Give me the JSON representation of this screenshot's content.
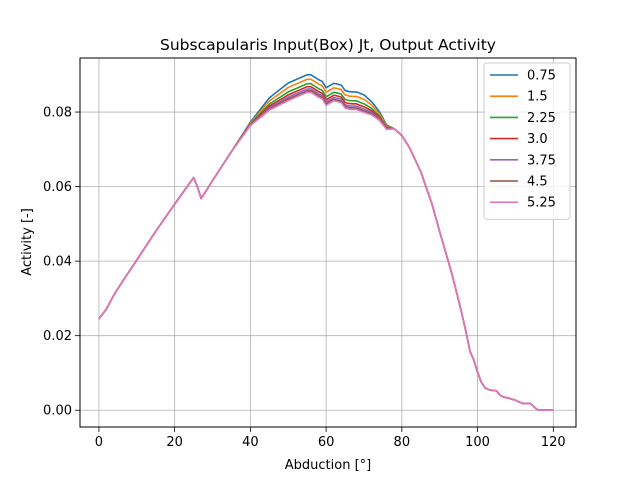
{
  "chart_data": {
    "type": "line",
    "title": "Subscapularis Input(Box) Jt, Output Activity",
    "xlabel": "Abduction [°]",
    "ylabel": "Activity [-]",
    "xlim": [
      -5,
      126
    ],
    "ylim": [
      -0.0045,
      0.0945
    ],
    "xticks": [
      0,
      20,
      40,
      60,
      80,
      100,
      120
    ],
    "xtick_labels": [
      "0",
      "20",
      "40",
      "60",
      "80",
      "100",
      "120"
    ],
    "yticks": [
      0.0,
      0.02,
      0.04,
      0.06,
      0.08
    ],
    "ytick_labels": [
      "0.00",
      "0.02",
      "0.04",
      "0.06",
      "0.08"
    ],
    "grid": true,
    "legend_position": "top-right",
    "base_curve": {
      "x": [
        0,
        2,
        4,
        6,
        10,
        15,
        20,
        25,
        26,
        27,
        30,
        35,
        40,
        45,
        50,
        55,
        56,
        58,
        59,
        60,
        62,
        63,
        64,
        65,
        66,
        67,
        68,
        70,
        72,
        74,
        76,
        78,
        80,
        82,
        85,
        88,
        90,
        93,
        95,
        96,
        97,
        98,
        99,
        100,
        101,
        102,
        103,
        104,
        105,
        106,
        107,
        108,
        109,
        110,
        111,
        112,
        113,
        114,
        115,
        116,
        117,
        118,
        119,
        120
      ],
      "y": [
        0.0245,
        0.0272,
        0.031,
        0.0342,
        0.0403,
        0.048,
        0.0553,
        0.0624,
        0.06,
        0.0568,
        0.0616,
        0.0694,
        0.0773,
        0.0838,
        0.0878,
        0.09,
        0.09,
        0.0887,
        0.0882,
        0.0865,
        0.0877,
        0.0875,
        0.0872,
        0.0858,
        0.0855,
        0.0854,
        0.0854,
        0.0846,
        0.0828,
        0.0802,
        0.0765,
        0.0755,
        0.0737,
        0.0705,
        0.064,
        0.0552,
        0.0479,
        0.0374,
        0.0295,
        0.0252,
        0.0208,
        0.0158,
        0.0135,
        0.0102,
        0.0075,
        0.006,
        0.0055,
        0.0053,
        0.0052,
        0.004,
        0.0035,
        0.0033,
        0.003,
        0.0027,
        0.0022,
        0.0018,
        0.0018,
        0.0018,
        0.0008,
        0.0,
        0.0,
        0.0,
        0.0,
        0.0
      ]
    },
    "series": [
      {
        "name": "0.75",
        "color": "#1f77b4",
        "peak_offset": 0.0
      },
      {
        "name": "1.5",
        "color": "#ff7f0e",
        "peak_offset": -0.0012
      },
      {
        "name": "2.25",
        "color": "#2ca02c",
        "peak_offset": -0.0024
      },
      {
        "name": "3.0",
        "color": "#d62728",
        "peak_offset": -0.0032
      },
      {
        "name": "3.75",
        "color": "#9467bd",
        "peak_offset": -0.0038
      },
      {
        "name": "4.5",
        "color": "#8c564b",
        "peak_offset": -0.0043
      },
      {
        "name": "5.25",
        "color": "#e377c2",
        "peak_offset": -0.0047
      }
    ]
  }
}
